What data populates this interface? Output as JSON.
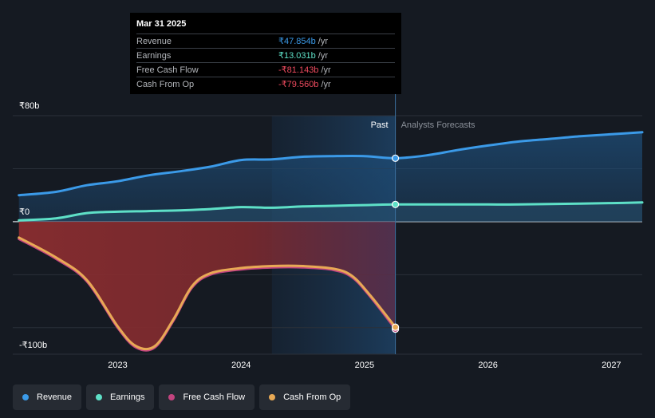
{
  "tooltip": {
    "date": "Mar 31 2025",
    "rows": [
      {
        "label": "Revenue",
        "value": "₹47.854b",
        "unit": "/yr",
        "color": "#3b9ae8"
      },
      {
        "label": "Earnings",
        "value": "₹13.031b",
        "unit": "/yr",
        "color": "#5ee0c7"
      },
      {
        "label": "Free Cash Flow",
        "value": "-₹81.143b",
        "unit": "/yr",
        "color": "#ef4b5f"
      },
      {
        "label": "Cash From Op",
        "value": "-₹79.560b",
        "unit": "/yr",
        "color": "#ef4b5f"
      }
    ]
  },
  "regions": {
    "past": "Past",
    "forecast": "Analysts Forecasts"
  },
  "legend": [
    {
      "label": "Revenue",
      "color": "#3b9ae8"
    },
    {
      "label": "Earnings",
      "color": "#5ee0c7"
    },
    {
      "label": "Free Cash Flow",
      "color": "#c3447f"
    },
    {
      "label": "Cash From Op",
      "color": "#e8a955"
    }
  ],
  "chart_data": {
    "type": "line",
    "title": "",
    "ylabel": "",
    "xlabel": "",
    "y_tick_labels": [
      "₹80b",
      "₹0",
      "-₹100b"
    ],
    "y_ticks": [
      80,
      0,
      -100
    ],
    "ylim": [
      -100,
      80
    ],
    "xlim": [
      2022.15,
      2027.25
    ],
    "x_ticks": [
      2023,
      2024,
      2025,
      2026,
      2027
    ],
    "x_tick_labels": [
      "2023",
      "2024",
      "2025",
      "2026",
      "2027"
    ],
    "past_region": [
      2024.25,
      2025.25
    ],
    "series": [
      {
        "name": "Revenue",
        "color": "#3b9ae8",
        "fill": true,
        "x": [
          2022.2,
          2022.5,
          2022.75,
          2023.0,
          2023.25,
          2023.5,
          2023.75,
          2024.0,
          2024.25,
          2024.5,
          2024.75,
          2025.0,
          2025.25,
          2025.5,
          2025.75,
          2026.0,
          2026.25,
          2026.5,
          2026.75,
          2027.0,
          2027.25
        ],
        "y": [
          20,
          22.5,
          27.5,
          30.5,
          35,
          38,
          41.5,
          46.5,
          47,
          49,
          49.5,
          49.5,
          47.9,
          50,
          54,
          57.5,
          60.5,
          62.5,
          64.5,
          66,
          67.5
        ],
        "marker_at": 2025.25
      },
      {
        "name": "Earnings",
        "color": "#5ee0c7",
        "fill": true,
        "x": [
          2022.2,
          2022.5,
          2022.75,
          2023.0,
          2023.25,
          2023.5,
          2023.75,
          2024.0,
          2024.25,
          2024.5,
          2024.75,
          2025.0,
          2025.25,
          2025.5,
          2025.75,
          2026.0,
          2026.25,
          2026.5,
          2026.75,
          2027.0,
          2027.25
        ],
        "y": [
          1,
          2.5,
          6.5,
          7.5,
          8,
          8.5,
          9.5,
          11,
          10.5,
          11.5,
          12,
          12.5,
          13.0,
          13,
          13,
          13,
          13,
          13.3,
          13.6,
          14,
          14.5
        ],
        "marker_at": 2025.25
      },
      {
        "name": "Free Cash Flow",
        "color": "#c3447f",
        "fill": true,
        "x": [
          2022.2,
          2022.5,
          2022.75,
          2023.0,
          2023.15,
          2023.3,
          2023.45,
          2023.6,
          2023.75,
          2024.0,
          2024.25,
          2024.5,
          2024.75,
          2024.9,
          2025.05,
          2025.25
        ],
        "y": [
          -13,
          -28,
          -45,
          -80,
          -95,
          -95,
          -75,
          -50,
          -40,
          -36,
          -34.5,
          -34.5,
          -36.5,
          -42,
          -57,
          -81.1
        ],
        "marker_at": 2025.25
      },
      {
        "name": "Cash From Op",
        "color": "#e8a955",
        "fill": false,
        "x": [
          2022.2,
          2022.5,
          2022.75,
          2023.0,
          2023.15,
          2023.3,
          2023.45,
          2023.6,
          2023.75,
          2024.0,
          2024.25,
          2024.5,
          2024.75,
          2024.9,
          2025.05,
          2025.25
        ],
        "y": [
          -12,
          -27,
          -44,
          -79,
          -94,
          -94,
          -74,
          -49,
          -39,
          -35,
          -33.5,
          -33.5,
          -35.5,
          -41,
          -56,
          -79.6
        ],
        "marker_at": 2025.25
      }
    ]
  }
}
